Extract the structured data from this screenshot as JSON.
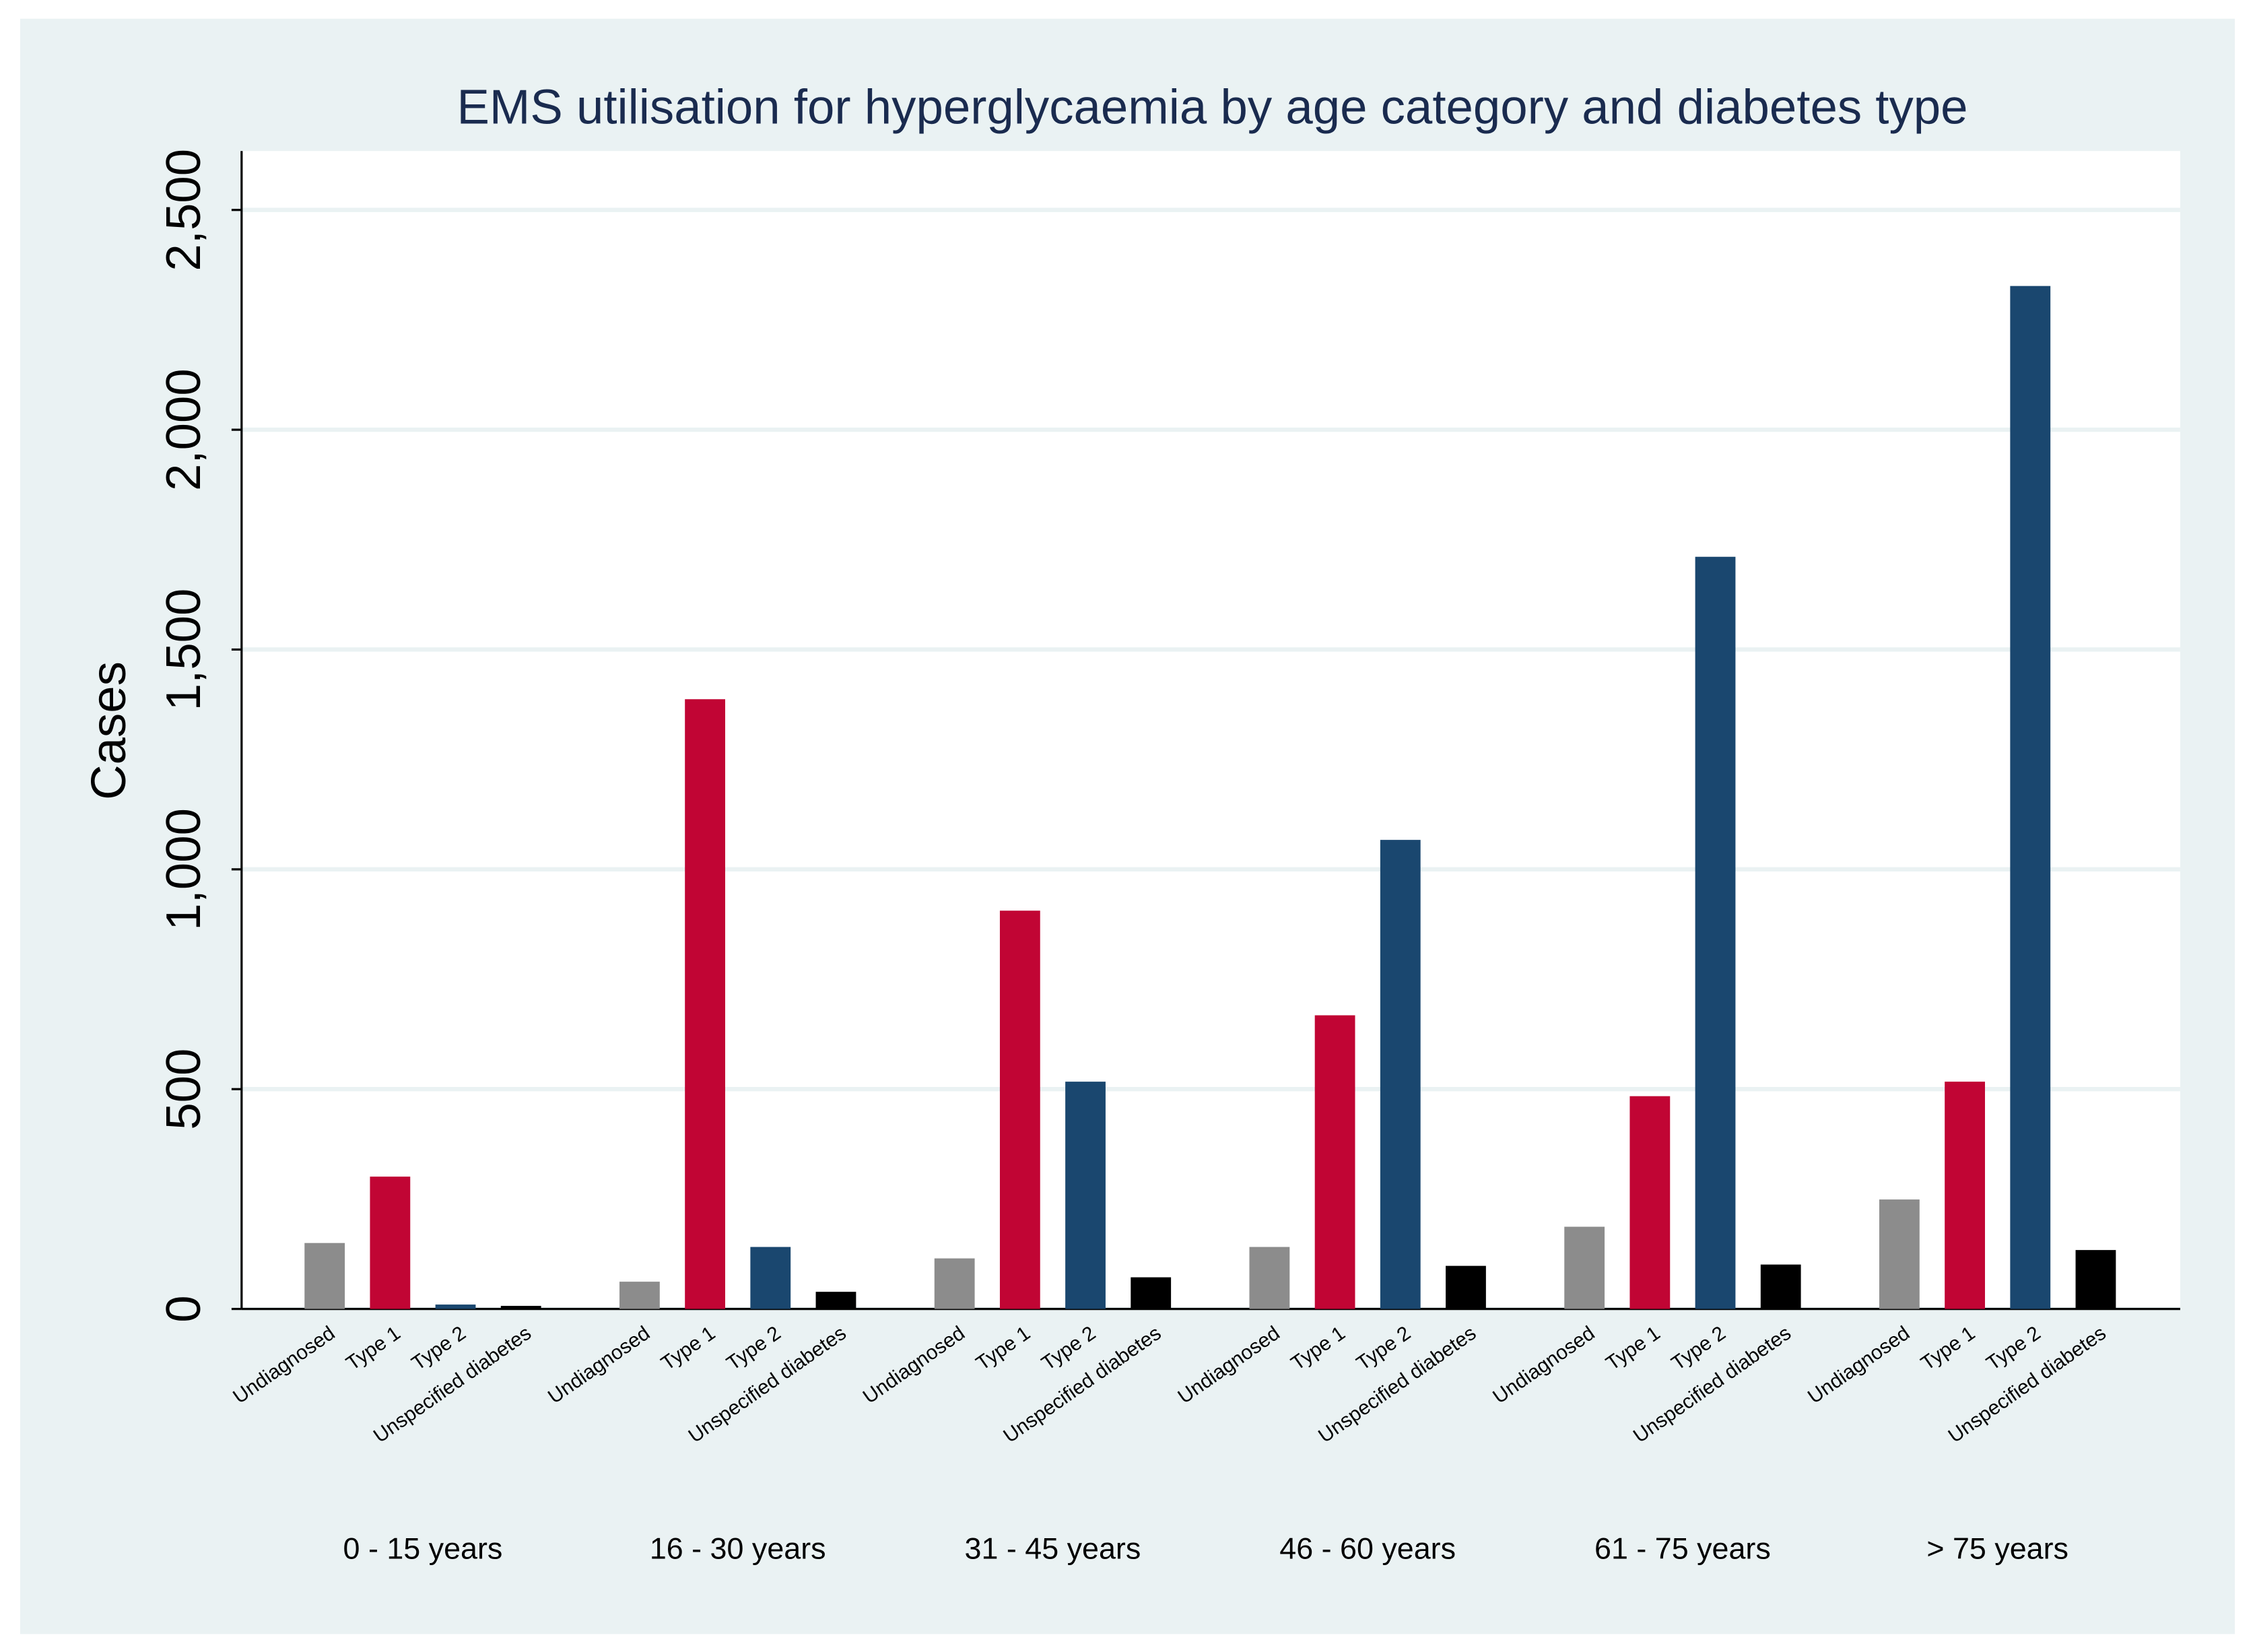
{
  "chart_data": {
    "type": "bar",
    "title": "EMS utilisation for hyperglycaemia by age category and diabetes type",
    "y_label": "Cases",
    "categories": [
      "0 - 15 years",
      "16 - 30 years",
      "31 - 45 years",
      "46 - 60 years",
      "61 - 75 years",
      "> 75 years"
    ],
    "series": [
      {
        "name": "Undiagnosed",
        "color": "#8c8c8c",
        "values": [
          150,
          62,
          115,
          141,
          187,
          249
        ]
      },
      {
        "name": "Type 1",
        "color": "#c10534",
        "values": [
          301,
          1387,
          906,
          668,
          484,
          517
        ]
      },
      {
        "name": "Type 2",
        "color": "#1a476f",
        "values": [
          10,
          141,
          517,
          1067,
          1711,
          2327
        ]
      },
      {
        "name": "Unspecified diabetes",
        "color": "#000000",
        "values": [
          7,
          39,
          72,
          98,
          101,
          134
        ]
      }
    ],
    "ylim": [
      0,
      2634
    ],
    "yticks": [
      0,
      500,
      {
        "value": 1000,
        "label": "1,000"
      },
      {
        "value": 1500,
        "label": "1,500"
      },
      {
        "value": 2000,
        "label": "2,000"
      },
      {
        "value": 2500,
        "label": "2,500"
      }
    ],
    "grid": true
  }
}
